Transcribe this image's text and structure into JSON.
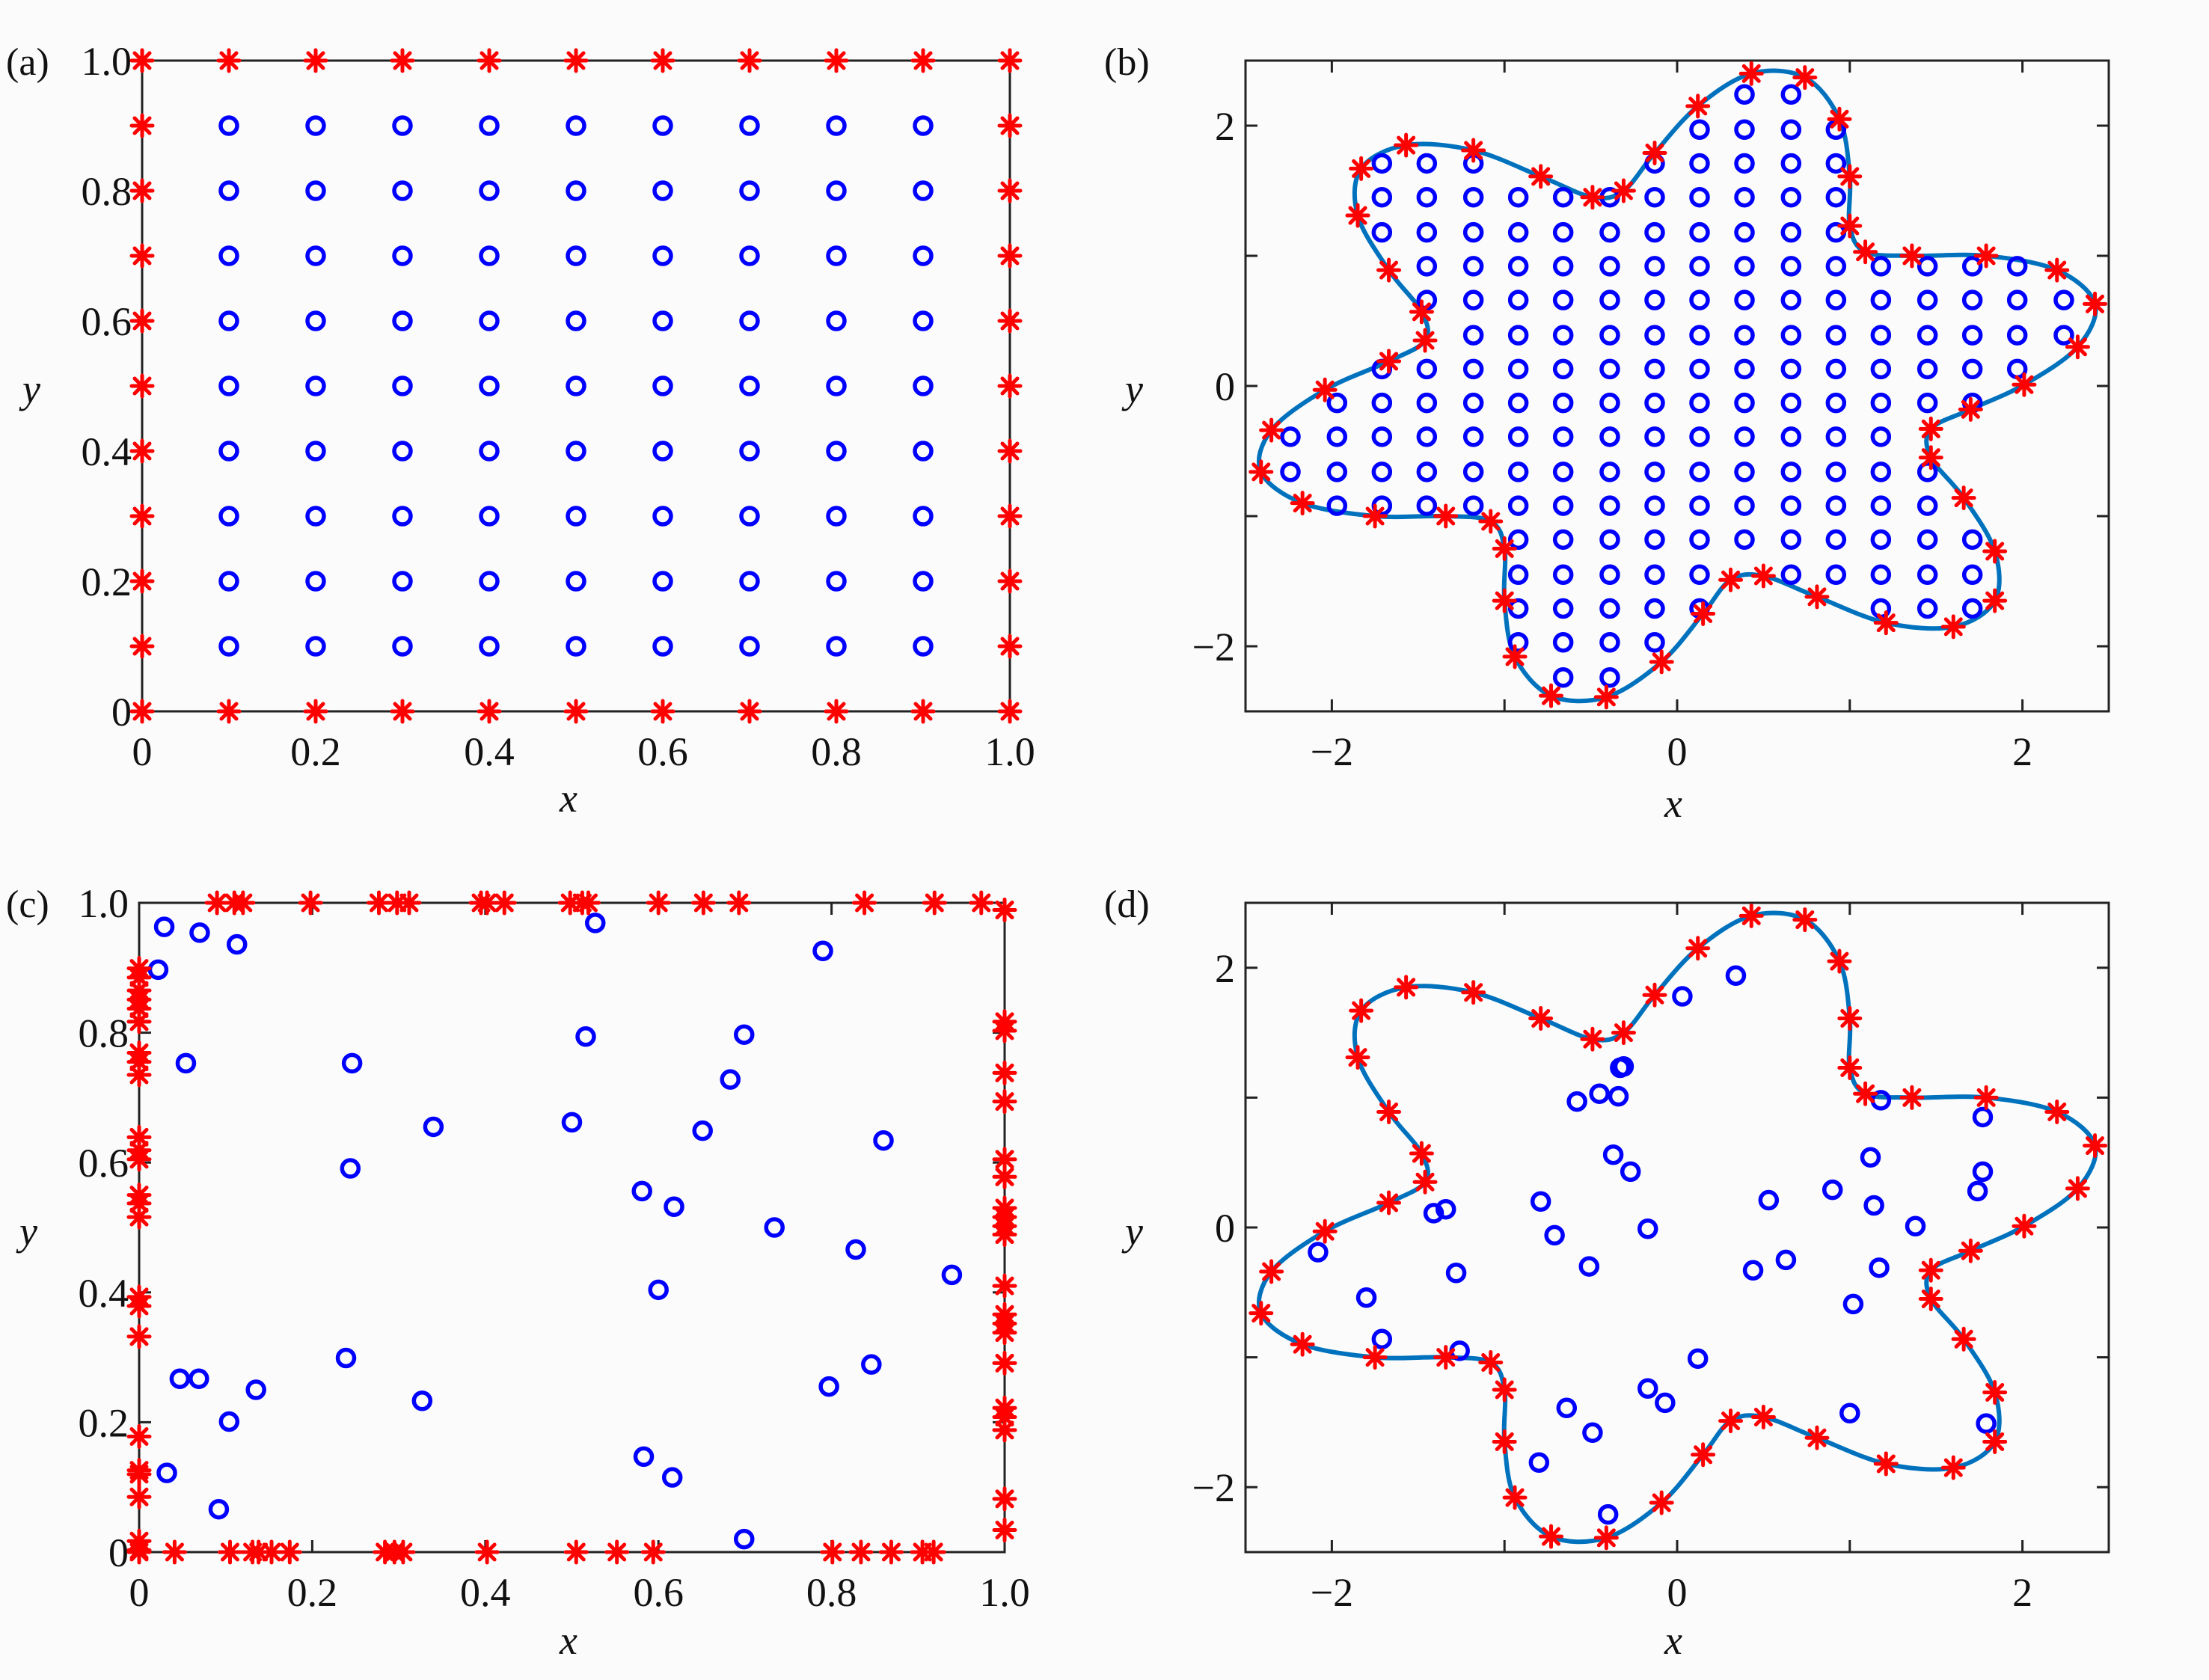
{
  "colors": {
    "interior": "#0000FF",
    "boundary": "#FF0000",
    "curve": "#0072BD",
    "axes": "#222222"
  },
  "chart_data": [
    {
      "panel": "(a)",
      "type": "scatter",
      "xlabel": "x",
      "ylabel": "y",
      "xlim": [
        0,
        1
      ],
      "ylim": [
        0,
        1
      ],
      "grid": false,
      "xticks": [
        0,
        0.2,
        0.4,
        0.6,
        0.8,
        1.0
      ],
      "xtick_labels": [
        "0",
        "0.2",
        "0.4",
        "0.6",
        "0.8",
        "1.0"
      ],
      "yticks": [
        0,
        0.2,
        0.4,
        0.6,
        0.8,
        1.0
      ],
      "ytick_labels": [
        "0",
        "0.2",
        "0.4",
        "0.6",
        "0.8",
        "1.0"
      ],
      "interior_grid": {
        "x": [
          0.1,
          0.2,
          0.3,
          0.4,
          0.5,
          0.6,
          0.7,
          0.8,
          0.9
        ],
        "y": [
          0.1,
          0.2,
          0.3,
          0.4,
          0.5,
          0.6,
          0.7,
          0.8,
          0.9
        ],
        "marker": "circle"
      },
      "boundary_grid": {
        "values": [
          0,
          0.1,
          0.2,
          0.3,
          0.4,
          0.5,
          0.6,
          0.7,
          0.8,
          0.9,
          1.0
        ],
        "marker": "asterisk"
      }
    },
    {
      "panel": "(b)",
      "type": "scatter",
      "xlabel": "x",
      "ylabel": "y",
      "xlim": [
        -2.5,
        2.5
      ],
      "ylim": [
        -2.5,
        2.5
      ],
      "grid": false,
      "xticks": [
        -2,
        -1,
        0,
        1,
        2
      ],
      "xtick_labels": [
        "−2",
        "",
        "0",
        "",
        "2"
      ],
      "yticks": [
        -2,
        -1,
        0,
        1,
        2
      ],
      "ytick_labels": [
        "−2",
        "",
        "0",
        "",
        "2"
      ],
      "boundary_curve": "closed smooth curve through boundary points",
      "boundary_source": "same as (d)",
      "interior_rows": {
        "grid_x": [
          -2.24,
          -1.97,
          -1.71,
          -1.45,
          -1.18,
          -0.92,
          -0.66,
          -0.39,
          -0.13,
          0.13,
          0.39,
          0.66,
          0.92,
          1.18,
          1.45,
          1.71,
          1.97,
          2.24
        ],
        "rows": [
          {
            "y": 2.24,
            "x_ranges": [
              [
                0.39,
                0.66
              ]
            ]
          },
          {
            "y": 1.97,
            "x_ranges": [
              [
                0.13,
                0.92
              ]
            ]
          },
          {
            "y": 1.71,
            "x_ranges": [
              [
                -1.71,
                -1.18
              ],
              [
                -0.13,
                0.92
              ]
            ]
          },
          {
            "y": 1.45,
            "x_ranges": [
              [
                -1.71,
                0.92
              ]
            ]
          },
          {
            "y": 1.18,
            "x_ranges": [
              [
                -1.71,
                0.92
              ]
            ]
          },
          {
            "y": 0.92,
            "x_ranges": [
              [
                -1.45,
                1.97
              ]
            ]
          },
          {
            "y": 0.66,
            "x_ranges": [
              [
                -1.45,
                2.24
              ]
            ]
          },
          {
            "y": 0.39,
            "x_ranges": [
              [
                -1.18,
                2.24
              ]
            ]
          },
          {
            "y": 0.13,
            "x_ranges": [
              [
                -1.71,
                1.97
              ]
            ]
          },
          {
            "y": -0.13,
            "x_ranges": [
              [
                -1.97,
                1.71
              ]
            ]
          },
          {
            "y": -0.39,
            "x_ranges": [
              [
                -2.24,
                1.18
              ]
            ]
          },
          {
            "y": -0.66,
            "x_ranges": [
              [
                -2.24,
                1.45
              ]
            ]
          },
          {
            "y": -0.92,
            "x_ranges": [
              [
                -1.97,
                1.45
              ]
            ]
          },
          {
            "y": -1.18,
            "x_ranges": [
              [
                -0.92,
                1.71
              ]
            ]
          },
          {
            "y": -1.45,
            "x_ranges": [
              [
                -0.92,
                0.13
              ],
              [
                0.66,
                1.71
              ]
            ]
          },
          {
            "y": -1.71,
            "x_ranges": [
              [
                -0.92,
                0.13
              ],
              [
                1.18,
                1.71
              ]
            ]
          },
          {
            "y": -1.97,
            "x_ranges": [
              [
                -0.92,
                -0.13
              ]
            ]
          },
          {
            "y": -2.24,
            "x_ranges": [
              [
                -0.66,
                -0.39
              ]
            ]
          }
        ]
      }
    },
    {
      "panel": "(c)",
      "type": "scatter",
      "xlabel": "x",
      "ylabel": "y",
      "xlim": [
        0,
        1
      ],
      "ylim": [
        0,
        1
      ],
      "grid": false,
      "xticks": [
        0,
        0.2,
        0.4,
        0.6,
        0.8,
        1.0
      ],
      "xtick_labels": [
        "0",
        "0.2",
        "0.4",
        "0.6",
        "0.8",
        "1.0"
      ],
      "yticks": [
        0,
        0.2,
        0.4,
        0.6,
        0.8,
        1.0
      ],
      "ytick_labels": [
        "0",
        "0.2",
        "0.4",
        "0.6",
        "0.8",
        "1.0"
      ],
      "interior_points": [
        [
          0.029,
          0.963
        ],
        [
          0.07,
          0.954
        ],
        [
          0.113,
          0.936
        ],
        [
          0.022,
          0.897
        ],
        [
          0.527,
          0.969
        ],
        [
          0.79,
          0.926
        ],
        [
          0.516,
          0.794
        ],
        [
          0.699,
          0.797
        ],
        [
          0.054,
          0.753
        ],
        [
          0.246,
          0.753
        ],
        [
          0.683,
          0.728
        ],
        [
          0.34,
          0.655
        ],
        [
          0.5,
          0.662
        ],
        [
          0.651,
          0.649
        ],
        [
          0.86,
          0.634
        ],
        [
          0.244,
          0.591
        ],
        [
          0.581,
          0.556
        ],
        [
          0.618,
          0.532
        ],
        [
          0.734,
          0.5
        ],
        [
          0.828,
          0.466
        ],
        [
          0.939,
          0.427
        ],
        [
          0.6,
          0.404
        ],
        [
          0.239,
          0.299
        ],
        [
          0.846,
          0.289
        ],
        [
          0.047,
          0.267
        ],
        [
          0.069,
          0.267
        ],
        [
          0.135,
          0.25
        ],
        [
          0.797,
          0.255
        ],
        [
          0.327,
          0.233
        ],
        [
          0.104,
          0.201
        ],
        [
          0.583,
          0.147
        ],
        [
          0.616,
          0.115
        ],
        [
          0.032,
          0.122
        ],
        [
          0.092,
          0.066
        ],
        [
          0.699,
          0.02
        ]
      ],
      "boundary_points": [
        [
          0.09,
          1
        ],
        [
          0.11,
          1
        ],
        [
          0.12,
          1
        ],
        [
          0.198,
          1
        ],
        [
          0.277,
          1
        ],
        [
          0.298,
          1
        ],
        [
          0.312,
          1
        ],
        [
          0.395,
          1
        ],
        [
          0.402,
          1
        ],
        [
          0.422,
          1
        ],
        [
          0.498,
          1
        ],
        [
          0.512,
          1
        ],
        [
          0.519,
          1
        ],
        [
          0.6,
          1
        ],
        [
          0.652,
          1
        ],
        [
          0.693,
          1
        ],
        [
          0.838,
          1
        ],
        [
          0.919,
          1
        ],
        [
          0.973,
          1
        ],
        [
          0,
          0
        ],
        [
          0,
          0.003
        ],
        [
          0,
          0.017
        ],
        [
          0.041,
          0
        ],
        [
          0.105,
          0
        ],
        [
          0.131,
          0
        ],
        [
          0.138,
          0
        ],
        [
          0.153,
          0
        ],
        [
          0.174,
          0
        ],
        [
          0.284,
          0
        ],
        [
          0.295,
          0
        ],
        [
          0.305,
          0
        ],
        [
          0.402,
          0
        ],
        [
          0.505,
          0
        ],
        [
          0.552,
          0
        ],
        [
          0.594,
          0
        ],
        [
          0.801,
          0
        ],
        [
          0.834,
          0
        ],
        [
          0.869,
          0
        ],
        [
          0.905,
          0
        ],
        [
          0.918,
          0
        ],
        [
          0,
          0.085
        ],
        [
          0,
          0.12
        ],
        [
          0,
          0.126
        ],
        [
          0,
          0.178
        ],
        [
          0,
          0.332
        ],
        [
          0,
          0.379
        ],
        [
          0,
          0.393
        ],
        [
          0,
          0.516
        ],
        [
          0,
          0.537
        ],
        [
          0,
          0.55
        ],
        [
          0,
          0.605
        ],
        [
          0,
          0.619
        ],
        [
          0,
          0.639
        ],
        [
          0,
          0.735
        ],
        [
          0,
          0.755
        ],
        [
          0,
          0.769
        ],
        [
          0,
          0.817
        ],
        [
          0,
          0.837
        ],
        [
          0,
          0.851
        ],
        [
          0,
          0.865
        ],
        [
          0,
          0.885
        ],
        [
          0,
          0.899
        ],
        [
          1,
          0.989
        ],
        [
          1,
          0.817
        ],
        [
          1,
          0.803
        ],
        [
          1,
          0.738
        ],
        [
          1,
          0.694
        ],
        [
          1,
          0.605
        ],
        [
          1,
          0.578
        ],
        [
          1,
          0.53
        ],
        [
          1,
          0.516
        ],
        [
          1,
          0.502
        ],
        [
          1,
          0.489
        ],
        [
          1,
          0.41
        ],
        [
          1,
          0.366
        ],
        [
          1,
          0.352
        ],
        [
          1,
          0.338
        ],
        [
          1,
          0.291
        ],
        [
          1,
          0.222
        ],
        [
          1,
          0.208
        ],
        [
          1,
          0.188
        ],
        [
          1,
          0.082
        ],
        [
          1,
          0.034
        ]
      ]
    },
    {
      "panel": "(d)",
      "type": "scatter",
      "xlabel": "x",
      "ylabel": "y",
      "xlim": [
        -2.5,
        2.5
      ],
      "ylim": [
        -2.5,
        2.5
      ],
      "grid": false,
      "xticks": [
        -2,
        -1,
        0,
        1,
        2
      ],
      "xtick_labels": [
        "−2",
        "",
        "0",
        "",
        "2"
      ],
      "yticks": [
        -2,
        -1,
        0,
        1,
        2
      ],
      "ytick_labels": [
        "−2",
        "",
        "0",
        "",
        "2"
      ],
      "boundary_curve": "closed smooth curve through boundary points",
      "interior_points": [
        [
          0.34,
          1.94
        ],
        [
          0.03,
          1.78
        ],
        [
          -0.33,
          1.23
        ],
        [
          -0.31,
          1.24
        ],
        [
          -0.45,
          1.03
        ],
        [
          -0.34,
          1.01
        ],
        [
          -0.58,
          0.97
        ],
        [
          1.18,
          0.98
        ],
        [
          1.77,
          0.85
        ],
        [
          -0.37,
          0.56
        ],
        [
          -0.27,
          0.43
        ],
        [
          1.12,
          0.54
        ],
        [
          1.77,
          0.43
        ],
        [
          1.74,
          0.28
        ],
        [
          -0.79,
          0.2
        ],
        [
          0.53,
          0.21
        ],
        [
          0.9,
          0.29
        ],
        [
          1.14,
          0.17
        ],
        [
          -1.34,
          0.14
        ],
        [
          -1.41,
          0.11
        ],
        [
          -0.17,
          -0.01
        ],
        [
          1.38,
          0.01
        ],
        [
          -0.71,
          -0.06
        ],
        [
          -2.08,
          -0.19
        ],
        [
          0.63,
          -0.25
        ],
        [
          0.44,
          -0.33
        ],
        [
          1.17,
          -0.31
        ],
        [
          -0.51,
          -0.3
        ],
        [
          -1.28,
          -0.35
        ],
        [
          -1.8,
          -0.54
        ],
        [
          1.02,
          -0.59
        ],
        [
          -1.71,
          -0.86
        ],
        [
          -1.26,
          -0.95
        ],
        [
          0.12,
          -1.01
        ],
        [
          -0.17,
          -1.24
        ],
        [
          -0.07,
          -1.35
        ],
        [
          -0.64,
          -1.39
        ],
        [
          1.0,
          -1.43
        ],
        [
          -0.49,
          -1.58
        ],
        [
          1.79,
          -1.51
        ],
        [
          -0.8,
          -1.81
        ],
        [
          -0.4,
          -2.21
        ]
      ],
      "boundary_points": [
        [
          0.43,
          2.4
        ],
        [
          0.74,
          2.37
        ],
        [
          0.12,
          2.15
        ],
        [
          0.94,
          2.05
        ],
        [
          -0.13,
          1.79
        ],
        [
          1.0,
          1.61
        ],
        [
          -0.31,
          1.5
        ],
        [
          -0.49,
          1.45
        ],
        [
          -0.79,
          1.61
        ],
        [
          -1.18,
          1.81
        ],
        [
          -1.57,
          1.85
        ],
        [
          -1.83,
          1.67
        ],
        [
          -1.85,
          1.31
        ],
        [
          1.0,
          1.23
        ],
        [
          1.09,
          1.03
        ],
        [
          1.36,
          1.0
        ],
        [
          1.79,
          1.0
        ],
        [
          2.2,
          0.89
        ],
        [
          2.42,
          0.63
        ],
        [
          2.32,
          0.3
        ],
        [
          2.01,
          0.01
        ],
        [
          1.7,
          -0.18
        ],
        [
          1.47,
          -0.33
        ],
        [
          1.47,
          -0.55
        ],
        [
          1.66,
          -0.86
        ],
        [
          1.84,
          -1.27
        ],
        [
          1.84,
          -1.65
        ],
        [
          1.6,
          -1.85
        ],
        [
          1.21,
          -1.82
        ],
        [
          0.81,
          -1.62
        ],
        [
          0.5,
          -1.46
        ],
        [
          0.31,
          -1.49
        ],
        [
          0.15,
          -1.75
        ],
        [
          -0.09,
          -2.12
        ],
        [
          -0.41,
          -2.39
        ],
        [
          -0.73,
          -2.38
        ],
        [
          -0.94,
          -2.08
        ],
        [
          -1.0,
          -1.65
        ],
        [
          -1.0,
          -1.25
        ],
        [
          -1.08,
          -1.04
        ],
        [
          -1.34,
          -1.0
        ],
        [
          -1.75,
          -1.0
        ],
        [
          -2.17,
          -0.9
        ],
        [
          -2.41,
          -0.66
        ],
        [
          -2.35,
          -0.34
        ],
        [
          -2.04,
          -0.03
        ],
        [
          -1.67,
          0.19
        ],
        [
          -1.46,
          0.35
        ],
        [
          -1.48,
          0.57
        ],
        [
          -1.67,
          0.89
        ]
      ]
    }
  ]
}
